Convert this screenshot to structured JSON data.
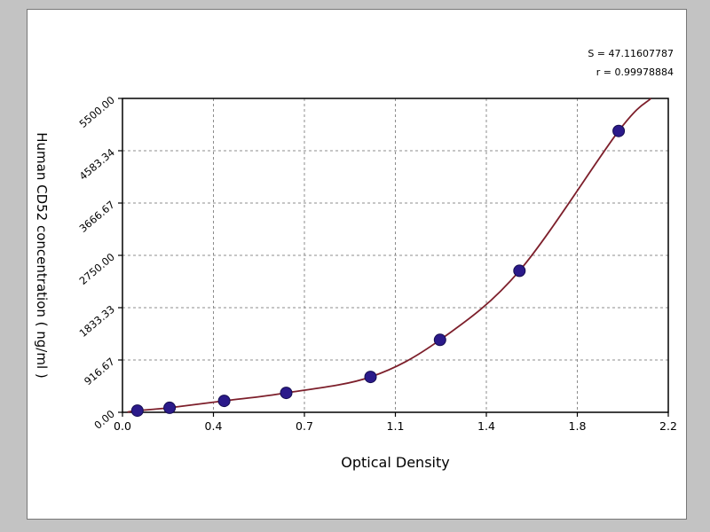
{
  "page": {
    "background": "#c3c3c3",
    "panel_background": "#ffffff"
  },
  "chart_data": {
    "type": "scatter",
    "xlabel": "Optical Density",
    "ylabel": "Human CD52 concentration ( ng/ml )",
    "xlim": [
      0,
      2.2
    ],
    "ylim": [
      0,
      5500
    ],
    "grid": true,
    "x_ticks": [
      {
        "v": 0,
        "label": "0.0"
      },
      {
        "v": 0.3667,
        "label": "0.4"
      },
      {
        "v": 0.7333,
        "label": "0.7"
      },
      {
        "v": 1.1,
        "label": "1.1"
      },
      {
        "v": 1.4667,
        "label": "1.4"
      },
      {
        "v": 1.8333,
        "label": "1.8"
      },
      {
        "v": 2.2,
        "label": "2.2"
      }
    ],
    "y_ticks": [
      {
        "v": 0,
        "label": "0.00"
      },
      {
        "v": 916.67,
        "label": "916.67"
      },
      {
        "v": 1833.33,
        "label": "1833.33"
      },
      {
        "v": 2750,
        "label": "2750.00"
      },
      {
        "v": 3666.67,
        "label": "3666.67"
      },
      {
        "v": 4583.34,
        "label": "4583.34"
      },
      {
        "v": 5500,
        "label": "5500.00"
      }
    ],
    "series": [
      {
        "name": "standard-points",
        "points": [
          [
            0.06,
            30
          ],
          [
            0.19,
            80
          ],
          [
            0.41,
            200
          ],
          [
            0.66,
            340
          ],
          [
            1.0,
            620
          ],
          [
            1.28,
            1270
          ],
          [
            1.6,
            2480
          ],
          [
            2.0,
            4930
          ]
        ]
      }
    ],
    "fit_curve": {
      "start": [
        0.02,
        5
      ],
      "end": [
        2.13,
        5500
      ]
    },
    "annotations": [
      "S = 47.11607787",
      "r = 0.99978884"
    ],
    "colors": {
      "curve": "#7d1f2b",
      "point": "#2b1a8a",
      "point_edge": "#140c50",
      "grid": "#8c8c8c",
      "axis": "#000000"
    }
  }
}
